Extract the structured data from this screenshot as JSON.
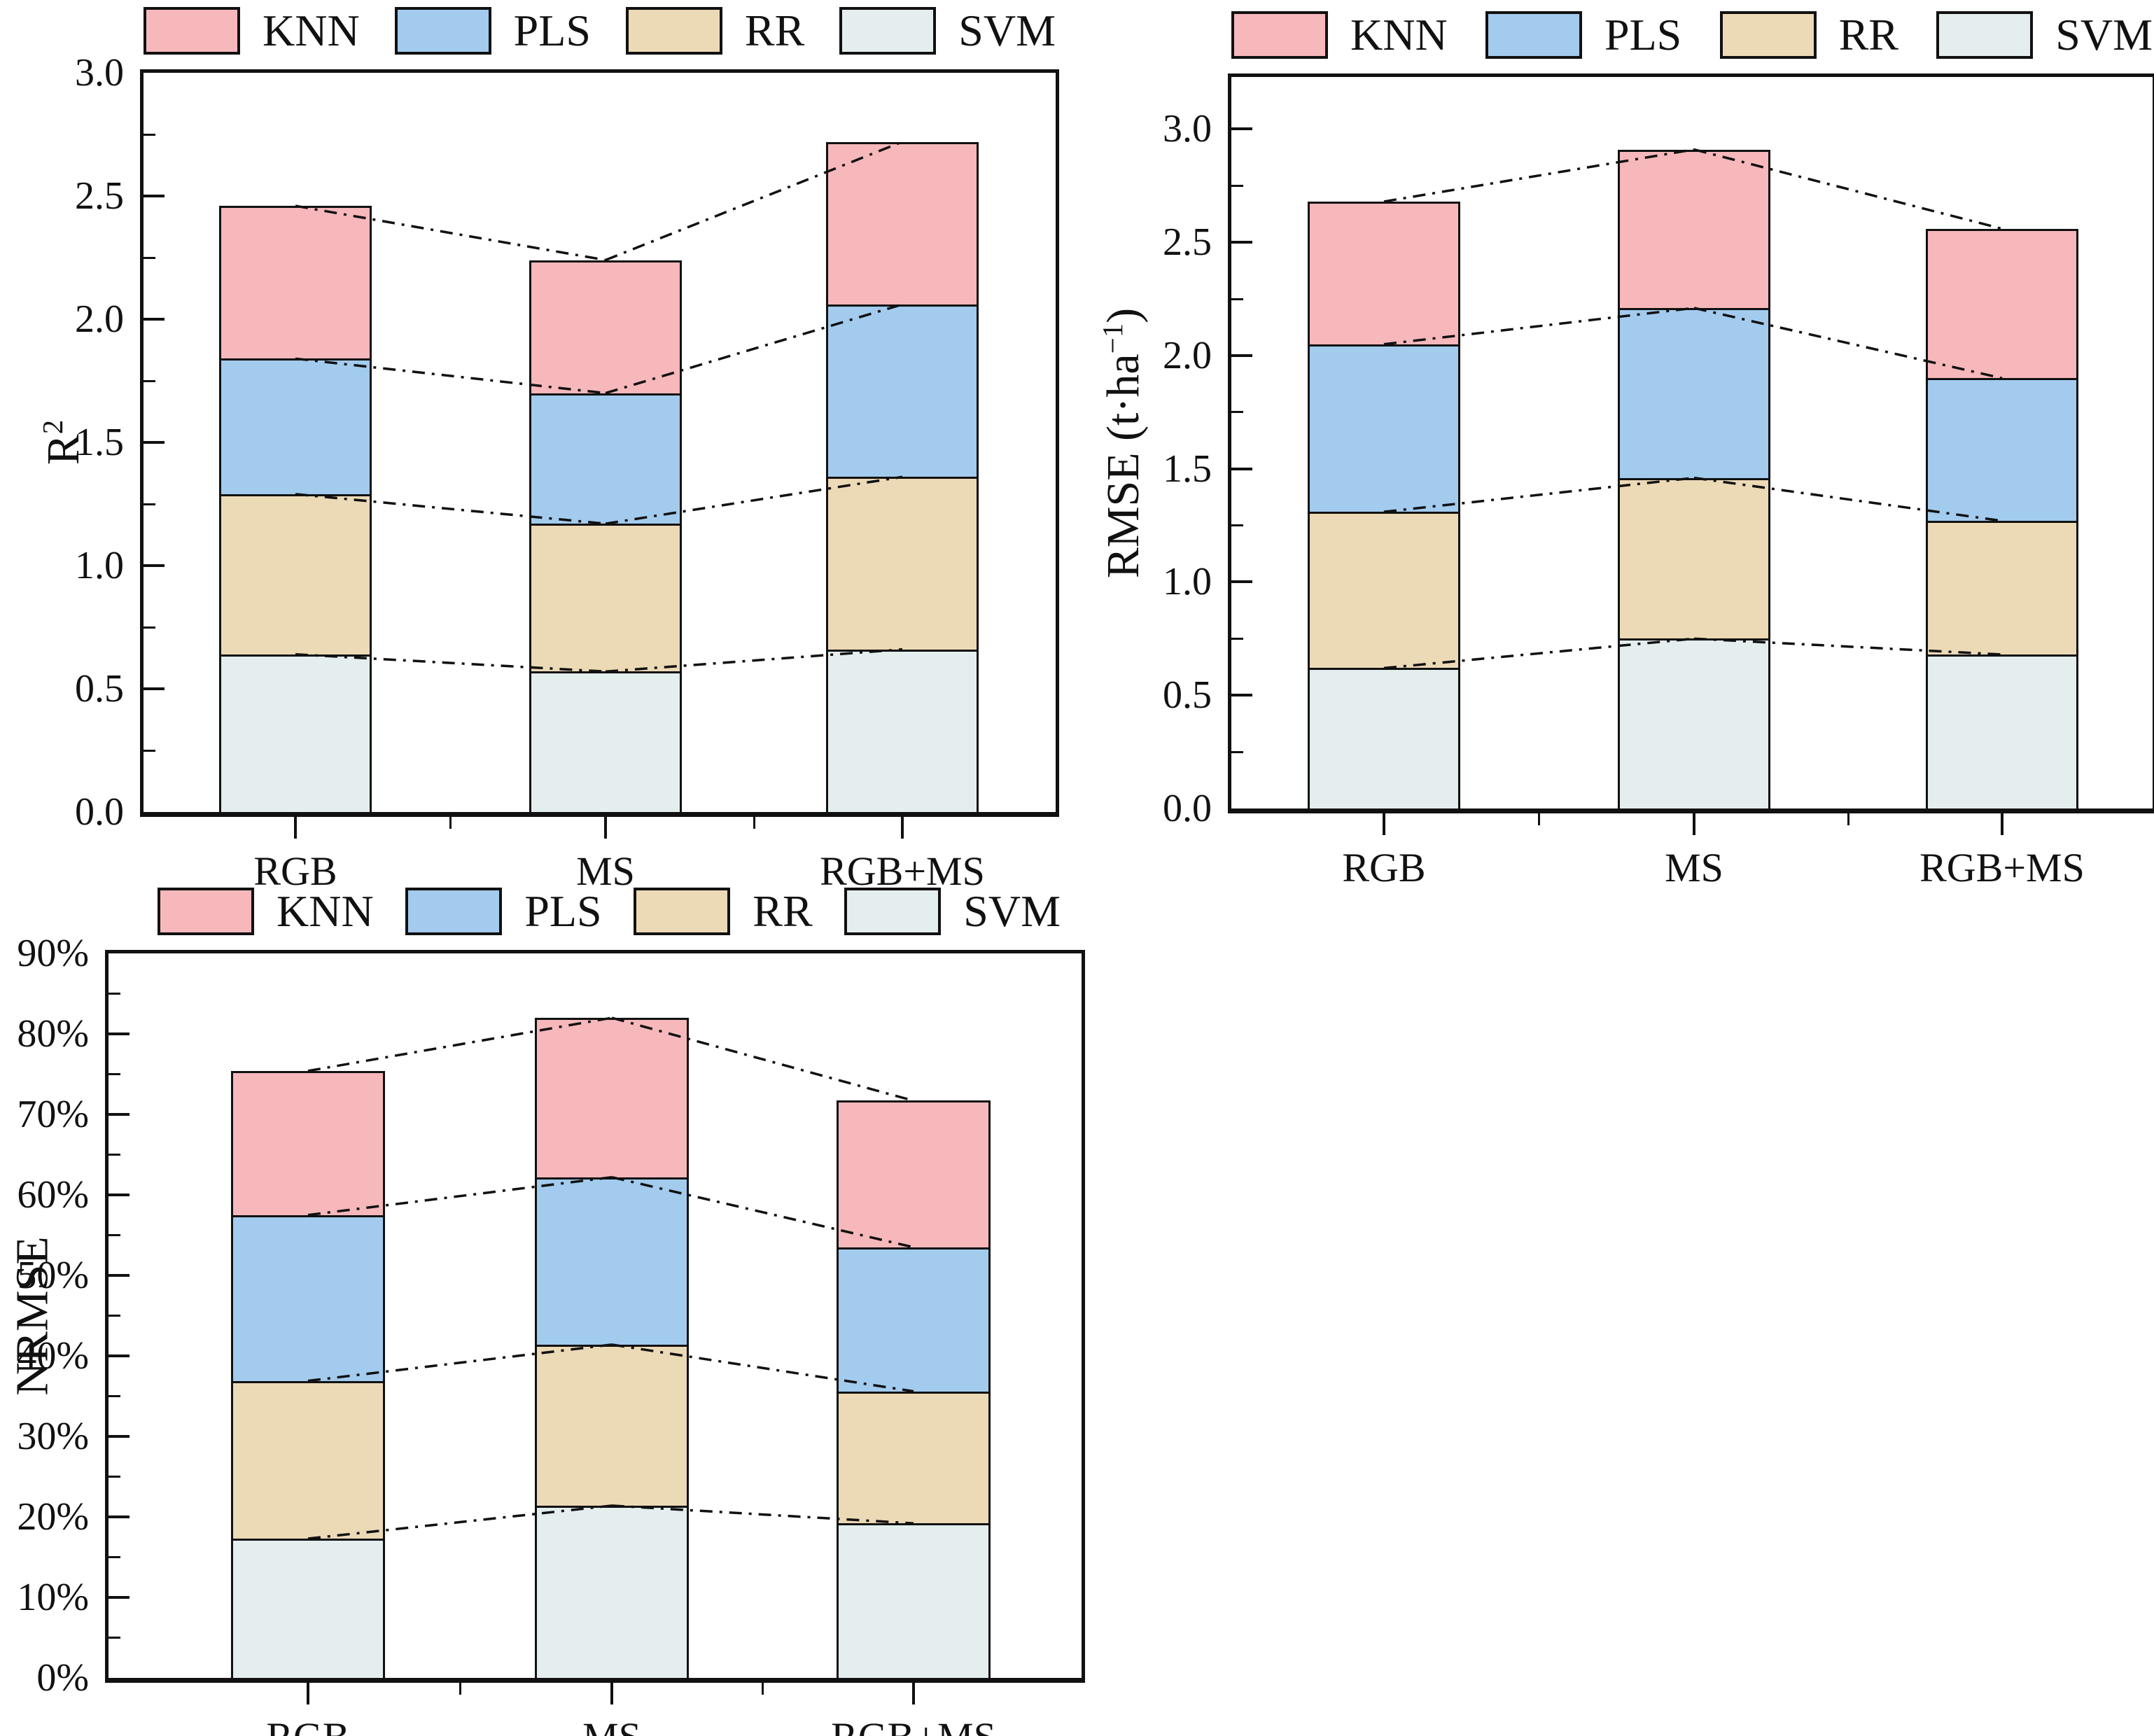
{
  "page": {
    "background_color": "#ffffff",
    "text_color": "#111111"
  },
  "legend": {
    "items": [
      {
        "label": "KNN",
        "color": "#f7b8bb"
      },
      {
        "label": "PLS",
        "color": "#a2cbee"
      },
      {
        "label": "RR",
        "color": "#ecd9b6"
      },
      {
        "label": "SVM",
        "color": "#e4eeee"
      }
    ]
  },
  "chart_data": [
    {
      "id": "r2",
      "type": "bar",
      "subtype": "stacked-column",
      "title": "",
      "xlabel": "",
      "ylabel_parts": [
        {
          "kind": "text",
          "text": "R"
        },
        {
          "kind": "sup",
          "text": "2"
        }
      ],
      "categories": [
        "RGB",
        "MS",
        "RGB+MS"
      ],
      "series": [
        {
          "name": "SVM",
          "color": "#e4eeee",
          "values": [
            0.64,
            0.57,
            0.66
          ]
        },
        {
          "name": "RR",
          "color": "#ecd9b6",
          "values": [
            0.65,
            0.6,
            0.7
          ]
        },
        {
          "name": "PLS",
          "color": "#a2cbee",
          "values": [
            0.55,
            0.53,
            0.7
          ]
        },
        {
          "name": "KNN",
          "color": "#f7b8bb",
          "values": [
            0.62,
            0.54,
            0.66
          ]
        }
      ],
      "stack_totals": [
        2.46,
        2.24,
        2.72
      ],
      "ylim": [
        0,
        3.0
      ],
      "yticks": [
        {
          "v": 0.0,
          "label": "0.0"
        },
        {
          "v": 0.5,
          "label": "0.5"
        },
        {
          "v": 1.0,
          "label": "1.0"
        },
        {
          "v": 1.5,
          "label": "1.5"
        },
        {
          "v": 2.0,
          "label": "2.0"
        },
        {
          "v": 2.5,
          "label": "2.5"
        },
        {
          "v": 3.0,
          "label": "3.0"
        }
      ],
      "minor_tick_step": 0.25,
      "legend": [
        "KNN",
        "PLS",
        "RR",
        "SVM"
      ],
      "legend_position": "top",
      "grid": false,
      "connector_lines": "dash-dot lines join same stack boundary between neighbouring bars"
    },
    {
      "id": "rmse",
      "type": "bar",
      "subtype": "stacked-column",
      "title": "",
      "xlabel": "",
      "ylabel_parts": [
        {
          "kind": "text",
          "text": "RMSE (t·ha"
        },
        {
          "kind": "sup",
          "text": "−1"
        },
        {
          "kind": "text",
          "text": ")"
        }
      ],
      "categories": [
        "RGB",
        "MS",
        "RGB+MS"
      ],
      "series": [
        {
          "name": "SVM",
          "color": "#e4eeee",
          "values": [
            0.62,
            0.75,
            0.68
          ]
        },
        {
          "name": "RR",
          "color": "#ecd9b6",
          "values": [
            0.69,
            0.71,
            0.59
          ]
        },
        {
          "name": "PLS",
          "color": "#a2cbee",
          "values": [
            0.74,
            0.75,
            0.63
          ]
        },
        {
          "name": "KNN",
          "color": "#f7b8bb",
          "values": [
            0.63,
            0.7,
            0.66
          ]
        }
      ],
      "stack_totals": [
        2.68,
        2.91,
        2.56
      ],
      "ylim": [
        0,
        3.23
      ],
      "yticks": [
        {
          "v": 0.0,
          "label": "0.0"
        },
        {
          "v": 0.5,
          "label": "0.5"
        },
        {
          "v": 1.0,
          "label": "1.0"
        },
        {
          "v": 1.5,
          "label": "1.5"
        },
        {
          "v": 2.0,
          "label": "2.0"
        },
        {
          "v": 2.5,
          "label": "2.5"
        },
        {
          "v": 3.0,
          "label": "3.0"
        }
      ],
      "minor_tick_step": 0.25,
      "legend": [
        "KNN",
        "PLS",
        "RR",
        "SVM"
      ],
      "legend_position": "top",
      "grid": false,
      "connector_lines": "dash-dot lines join same stack boundary between neighbouring bars"
    },
    {
      "id": "nrmse",
      "type": "bar",
      "subtype": "stacked-column",
      "title": "",
      "xlabel": "",
      "ylabel_parts": [
        {
          "kind": "text",
          "text": "NRMSE"
        }
      ],
      "categories": [
        "RGB",
        "MS",
        "RGB+MS"
      ],
      "unit": "%",
      "series": [
        {
          "name": "SVM",
          "color": "#e4eeee",
          "values": [
            17.3,
            21.4,
            19.2
          ]
        },
        {
          "name": "RR",
          "color": "#ecd9b6",
          "values": [
            19.6,
            20.0,
            16.4
          ]
        },
        {
          "name": "PLS",
          "color": "#a2cbee",
          "values": [
            20.6,
            20.8,
            17.9
          ]
        },
        {
          "name": "KNN",
          "color": "#f7b8bb",
          "values": [
            17.9,
            19.8,
            18.2
          ]
        }
      ],
      "stack_totals": [
        75.4,
        82.0,
        71.7
      ],
      "ylim": [
        0,
        90
      ],
      "yticks": [
        {
          "v": 0,
          "label": "0%"
        },
        {
          "v": 10,
          "label": "10%"
        },
        {
          "v": 20,
          "label": "20%"
        },
        {
          "v": 30,
          "label": "30%"
        },
        {
          "v": 40,
          "label": "40%"
        },
        {
          "v": 50,
          "label": "50%"
        },
        {
          "v": 60,
          "label": "60%"
        },
        {
          "v": 70,
          "label": "70%"
        },
        {
          "v": 80,
          "label": "80%"
        },
        {
          "v": 90,
          "label": "90%"
        }
      ],
      "minor_tick_step": 5,
      "legend": [
        "KNN",
        "PLS",
        "RR",
        "SVM"
      ],
      "legend_position": "top",
      "grid": false,
      "connector_lines": "dash-dot lines join same stack boundary between neighbouring bars"
    }
  ]
}
